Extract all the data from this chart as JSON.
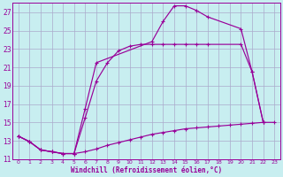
{
  "xlabel": "Windchill (Refroidissement éolien,°C)",
  "bg_color": "#c8eef0",
  "grid_color": "#aaaacc",
  "line_color": "#990099",
  "xlim": [
    -0.5,
    23.5
  ],
  "ylim": [
    11,
    28
  ],
  "yticks": [
    11,
    13,
    15,
    17,
    19,
    21,
    23,
    25,
    27
  ],
  "xticks": [
    0,
    1,
    2,
    3,
    4,
    5,
    6,
    7,
    8,
    9,
    10,
    11,
    12,
    13,
    14,
    15,
    16,
    17,
    18,
    19,
    20,
    21,
    22,
    23
  ],
  "curve_bottom_x": [
    0,
    1,
    2,
    3,
    4,
    5,
    6,
    7,
    8,
    9,
    10,
    11,
    12,
    13,
    14,
    15,
    16,
    17,
    18,
    19,
    20,
    21,
    22,
    23
  ],
  "curve_bottom_y": [
    13.5,
    12.9,
    12.0,
    11.8,
    11.6,
    11.6,
    11.8,
    12.1,
    12.5,
    12.8,
    13.1,
    13.4,
    13.7,
    13.9,
    14.1,
    14.3,
    14.4,
    14.5,
    14.6,
    14.7,
    14.8,
    14.9,
    15.0,
    15.0
  ],
  "curve_mid_x": [
    0,
    1,
    2,
    3,
    4,
    5,
    6,
    7,
    8,
    9,
    10,
    11,
    12,
    13,
    14,
    15,
    16,
    17,
    20,
    21,
    22
  ],
  "curve_mid_y": [
    13.5,
    12.9,
    12.0,
    11.8,
    11.6,
    11.6,
    15.5,
    19.5,
    21.5,
    22.8,
    23.3,
    23.5,
    23.5,
    23.5,
    23.5,
    23.5,
    23.5,
    23.5,
    23.5,
    20.5,
    15.0
  ],
  "curve_top_x": [
    0,
    1,
    2,
    3,
    4,
    5,
    6,
    7,
    12,
    13,
    14,
    15,
    16,
    17,
    20,
    21,
    22
  ],
  "curve_top_y": [
    13.5,
    12.9,
    12.0,
    11.8,
    11.6,
    11.6,
    16.5,
    21.5,
    23.8,
    26.0,
    27.7,
    27.7,
    27.2,
    26.5,
    25.2,
    20.5,
    15.0
  ]
}
